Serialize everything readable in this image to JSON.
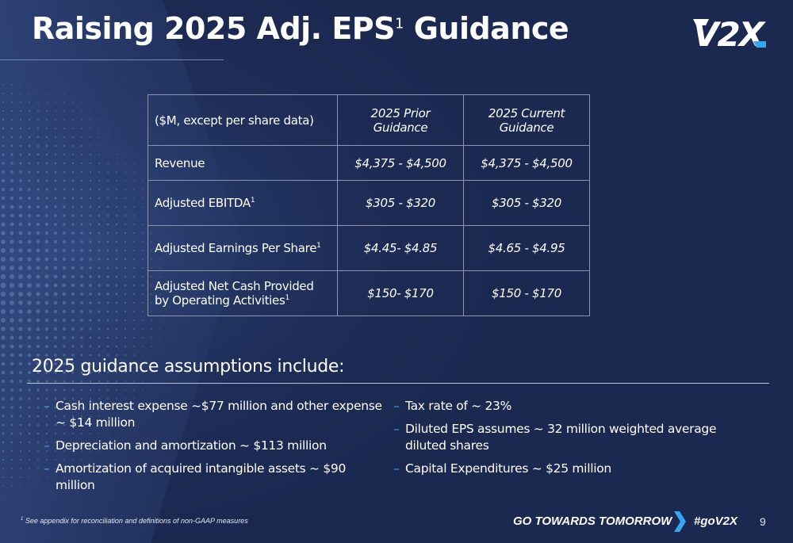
{
  "header": {
    "title_main": "Raising 2025 Adj. EPS",
    "title_sup": "1",
    "title_end": " Guidance",
    "logo_text": "V2X"
  },
  "table": {
    "columns": [
      "($M, except per share data)",
      "2025 Prior Guidance",
      "2025 Current Guidance"
    ],
    "rows": [
      {
        "label": "Revenue",
        "sup": "",
        "prior": "$4,375 - $4,500",
        "current": "$4,375 - $4,500"
      },
      {
        "label": "Adjusted EBITDA",
        "sup": "1",
        "prior": "$305 - $320",
        "current": "$305 - $320"
      },
      {
        "label": "Adjusted Earnings Per Share",
        "sup": "1",
        "prior": "$4.45- $4.85",
        "current": "$4.65 - $4.95"
      },
      {
        "label": "Adjusted Net Cash Provided by Operating Activities",
        "sup": "1",
        "prior": "$150- $170",
        "current": "$150 - $170"
      }
    ]
  },
  "assumptions": {
    "title": "2025 guidance assumptions include:",
    "left": [
      "Cash interest expense ~$77 million and other expense ~ $14 million",
      "Depreciation and amortization ~ $113 million",
      "Amortization of acquired intangible assets ~ $90 million"
    ],
    "right": [
      "Tax rate of ~ 23%",
      "Diluted EPS assumes ~ 32 million weighted average diluted shares",
      "Capital Expenditures ~ $25 million"
    ]
  },
  "footer": {
    "footnote_sup": "1",
    "footnote": "See appendix for reconciliation and definitions of non-GAAP measures",
    "tagline": "GO TOWARDS TOMORROW",
    "hashtag": "#goV2X",
    "page_number": "9"
  },
  "colors": {
    "background": "#1b2850",
    "accent_blue": "#3aa5ee",
    "table_border": "#8d95ad"
  },
  "icons": [
    "v2x-logo",
    "chevron-right-icon",
    "dash-bullet"
  ]
}
